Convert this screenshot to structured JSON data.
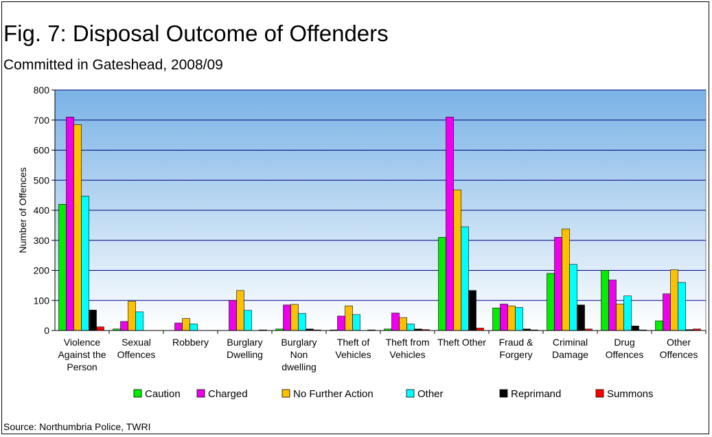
{
  "title": "Fig. 7: Disposal Outcome of Offenders",
  "subtitle": "Committed in Gateshead, 2008/09",
  "source": "Source: Northumbria Police, TWRI",
  "chart_data": {
    "type": "bar",
    "ylabel": "Number of Offences",
    "xlabel": "",
    "ylim": [
      0,
      800
    ],
    "yticks": [
      0,
      100,
      200,
      300,
      400,
      500,
      600,
      700,
      800
    ],
    "grid": true,
    "legend_position": "bottom",
    "categories": [
      [
        "Violence",
        "Against the",
        "Person"
      ],
      [
        "Sexual",
        "Offences"
      ],
      [
        "Robbery"
      ],
      [
        "Burglary",
        "Dwelling"
      ],
      [
        "Burglary",
        "Non",
        "dwelling"
      ],
      [
        "Theft of",
        "Vehicles"
      ],
      [
        "Theft from",
        "Vehicles"
      ],
      [
        "Theft Other"
      ],
      [
        "Fraud &",
        "Forgery"
      ],
      [
        "Criminal",
        "Damage"
      ],
      [
        "Drug",
        "Offences"
      ],
      [
        "Other",
        "Offences"
      ]
    ],
    "series": [
      {
        "name": "Caution",
        "color": "#00ee00",
        "values": [
          420,
          5,
          0,
          0,
          5,
          2,
          5,
          310,
          75,
          190,
          200,
          32
        ]
      },
      {
        "name": "Charged",
        "color": "#ee00ee",
        "values": [
          710,
          30,
          25,
          100,
          85,
          48,
          58,
          710,
          88,
          310,
          168,
          122
        ]
      },
      {
        "name": "No Further Action",
        "color": "#ffc000",
        "values": [
          685,
          97,
          40,
          133,
          87,
          82,
          43,
          468,
          82,
          338,
          88,
          202
        ]
      },
      {
        "name": "Other",
        "color": "#00ffff",
        "values": [
          447,
          62,
          22,
          67,
          57,
          53,
          22,
          345,
          77,
          220,
          115,
          160
        ]
      },
      {
        "name": "Reprimand",
        "color": "#000000",
        "values": [
          68,
          0,
          0,
          0,
          5,
          0,
          5,
          133,
          5,
          85,
          15,
          3
        ]
      },
      {
        "name": "Summons",
        "color": "#ff0000",
        "values": [
          12,
          0,
          0,
          2,
          2,
          2,
          3,
          8,
          2,
          5,
          2,
          5
        ]
      }
    ]
  }
}
